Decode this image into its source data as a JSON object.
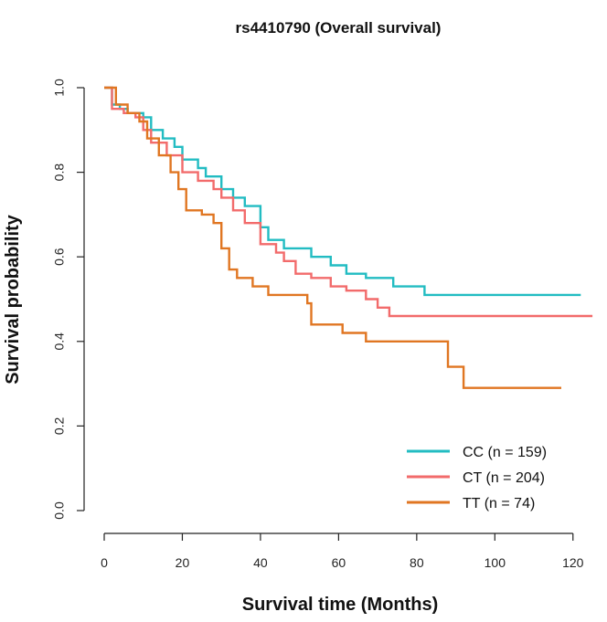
{
  "chart_data": {
    "type": "line",
    "title": "rs4410790 (Overall survival)",
    "xlabel": "Survival time (Months)",
    "ylabel": "Survival probability",
    "xlim": [
      0,
      125
    ],
    "ylim": [
      0,
      1.0
    ],
    "x_ticks": [
      0,
      20,
      40,
      60,
      80,
      100,
      120
    ],
    "y_ticks": [
      0.0,
      0.2,
      0.4,
      0.6,
      0.8,
      1.0
    ],
    "x_tick_labels": [
      "0",
      "20",
      "40",
      "60",
      "80",
      "100",
      "120"
    ],
    "y_tick_labels": [
      "0.0",
      "0.2",
      "0.4",
      "0.6",
      "0.8",
      "1.0"
    ],
    "legend_position": "bottom-right",
    "series": [
      {
        "name": "CC (n = 159)",
        "color": "#22bcc2",
        "points": [
          [
            0,
            1.0
          ],
          [
            2,
            0.96
          ],
          [
            4,
            0.95
          ],
          [
            6,
            0.94
          ],
          [
            10,
            0.93
          ],
          [
            12,
            0.9
          ],
          [
            15,
            0.88
          ],
          [
            18,
            0.86
          ],
          [
            20,
            0.83
          ],
          [
            24,
            0.81
          ],
          [
            26,
            0.79
          ],
          [
            30,
            0.76
          ],
          [
            33,
            0.74
          ],
          [
            36,
            0.72
          ],
          [
            40,
            0.67
          ],
          [
            42,
            0.64
          ],
          [
            46,
            0.62
          ],
          [
            53,
            0.6
          ],
          [
            58,
            0.58
          ],
          [
            62,
            0.56
          ],
          [
            67,
            0.55
          ],
          [
            74,
            0.53
          ],
          [
            82,
            0.51
          ],
          [
            122,
            0.51
          ]
        ]
      },
      {
        "name": "CT (n = 204)",
        "color": "#f26b6b",
        "points": [
          [
            0,
            1.0
          ],
          [
            2,
            0.95
          ],
          [
            5,
            0.94
          ],
          [
            8,
            0.93
          ],
          [
            10,
            0.9
          ],
          [
            12,
            0.87
          ],
          [
            16,
            0.84
          ],
          [
            20,
            0.8
          ],
          [
            24,
            0.78
          ],
          [
            28,
            0.76
          ],
          [
            30,
            0.74
          ],
          [
            33,
            0.71
          ],
          [
            36,
            0.68
          ],
          [
            40,
            0.63
          ],
          [
            44,
            0.61
          ],
          [
            46,
            0.59
          ],
          [
            49,
            0.56
          ],
          [
            53,
            0.55
          ],
          [
            58,
            0.53
          ],
          [
            62,
            0.52
          ],
          [
            67,
            0.5
          ],
          [
            70,
            0.48
          ],
          [
            73,
            0.46
          ],
          [
            125,
            0.46
          ]
        ]
      },
      {
        "name": "TT (n = 74)",
        "color": "#e07622",
        "points": [
          [
            0,
            1.0
          ],
          [
            3,
            0.96
          ],
          [
            6,
            0.94
          ],
          [
            9,
            0.92
          ],
          [
            11,
            0.88
          ],
          [
            14,
            0.84
          ],
          [
            17,
            0.8
          ],
          [
            19,
            0.76
          ],
          [
            21,
            0.71
          ],
          [
            25,
            0.7
          ],
          [
            28,
            0.68
          ],
          [
            30,
            0.62
          ],
          [
            32,
            0.57
          ],
          [
            34,
            0.55
          ],
          [
            38,
            0.53
          ],
          [
            42,
            0.51
          ],
          [
            52,
            0.49
          ],
          [
            53,
            0.44
          ],
          [
            61,
            0.42
          ],
          [
            67,
            0.4
          ],
          [
            88,
            0.34
          ],
          [
            92,
            0.29
          ],
          [
            117,
            0.29
          ]
        ]
      }
    ]
  }
}
